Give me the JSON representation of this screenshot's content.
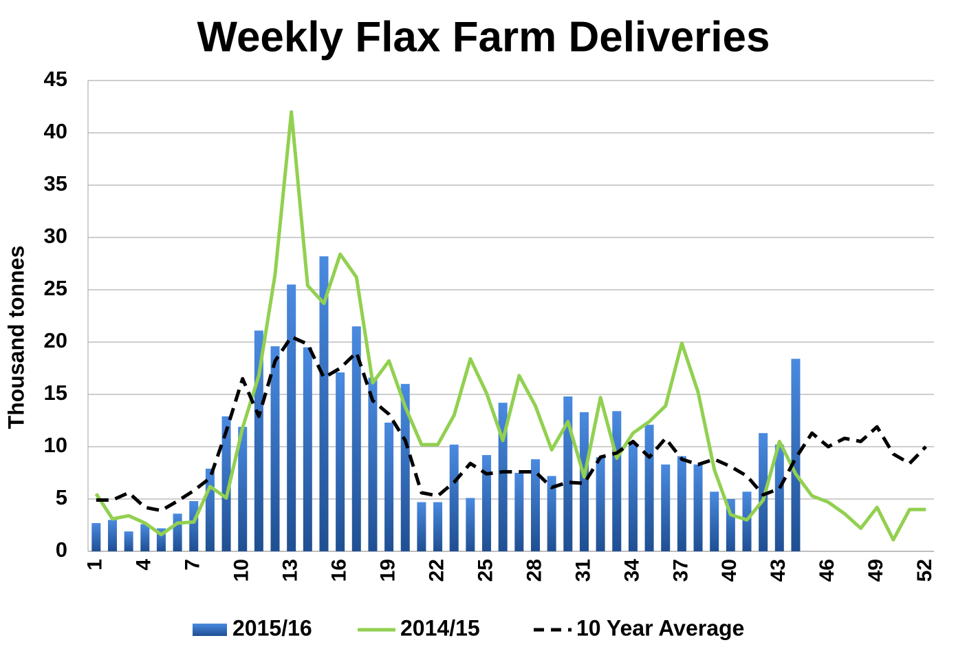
{
  "chart_data": {
    "type": "combo",
    "title": "Weekly Flax Farm Deliveries",
    "y_label": "Thousand tonnes",
    "categories": [
      1,
      null,
      null,
      4,
      null,
      null,
      7,
      null,
      null,
      10,
      null,
      null,
      13,
      null,
      null,
      16,
      null,
      null,
      19,
      null,
      null,
      22,
      null,
      null,
      25,
      null,
      null,
      28,
      null,
      null,
      31,
      null,
      null,
      34,
      null,
      null,
      37,
      null,
      null,
      40,
      null,
      null,
      43,
      null,
      null,
      46,
      null,
      null,
      49,
      null,
      null,
      52
    ],
    "ylim": [
      0,
      45
    ],
    "yticks": [
      0,
      5,
      10,
      15,
      20,
      25,
      30,
      35,
      40,
      45
    ],
    "grid": true,
    "legend": "bottom",
    "series": [
      {
        "name": "2015/16",
        "type": "bar",
        "color": "#3f7fd0",
        "values": [
          2.7,
          3.0,
          1.9,
          2.6,
          2.2,
          3.6,
          4.8,
          7.9,
          12.9,
          11.9,
          21.1,
          19.6,
          25.5,
          19.5,
          28.2,
          17.1,
          21.5,
          16.6,
          12.3,
          16.0,
          4.7,
          4.7,
          10.2,
          5.1,
          9.2,
          14.2,
          7.5,
          8.8,
          7.2,
          14.8,
          13.3,
          9.0,
          13.4,
          10.3,
          12.1,
          8.3,
          9.1,
          8.3,
          5.7,
          5.0,
          5.7,
          11.3,
          10.2,
          18.4,
          null,
          null,
          null,
          null,
          null,
          null,
          null,
          null
        ]
      },
      {
        "name": "2014/15",
        "type": "line",
        "color": "#92d050",
        "values": [
          5.5,
          3.1,
          3.4,
          2.7,
          1.6,
          2.7,
          2.8,
          6.2,
          5.1,
          11.8,
          16.8,
          26.5,
          42.0,
          25.4,
          23.7,
          28.4,
          26.2,
          16.1,
          18.2,
          13.8,
          10.2,
          10.2,
          13.0,
          18.4,
          15.1,
          10.6,
          16.8,
          13.9,
          9.7,
          12.4,
          7.1,
          14.7,
          8.9,
          11.3,
          12.4,
          13.9,
          19.9,
          15.2,
          7.8,
          3.5,
          3.0,
          4.9,
          10.5,
          7.4,
          5.3,
          4.7,
          3.6,
          2.2,
          4.2,
          1.1,
          4.0,
          4.0
        ]
      },
      {
        "name": "10 Year Average",
        "type": "line",
        "dashed": true,
        "color": "#000000",
        "values": [
          4.9,
          4.9,
          5.6,
          4.2,
          3.9,
          4.8,
          5.8,
          7.0,
          11.5,
          16.5,
          12.9,
          18.2,
          20.5,
          19.8,
          16.6,
          17.5,
          19.0,
          14.4,
          13.1,
          10.6,
          5.6,
          5.3,
          6.6,
          8.4,
          7.4,
          7.6,
          7.6,
          7.6,
          6.1,
          6.6,
          6.5,
          9.0,
          9.4,
          10.5,
          9.0,
          10.8,
          8.8,
          8.3,
          8.8,
          8.1,
          7.2,
          5.4,
          6.0,
          8.9,
          11.3,
          10.0,
          10.8,
          10.5,
          11.9,
          9.3,
          8.4,
          10.0
        ]
      }
    ]
  }
}
